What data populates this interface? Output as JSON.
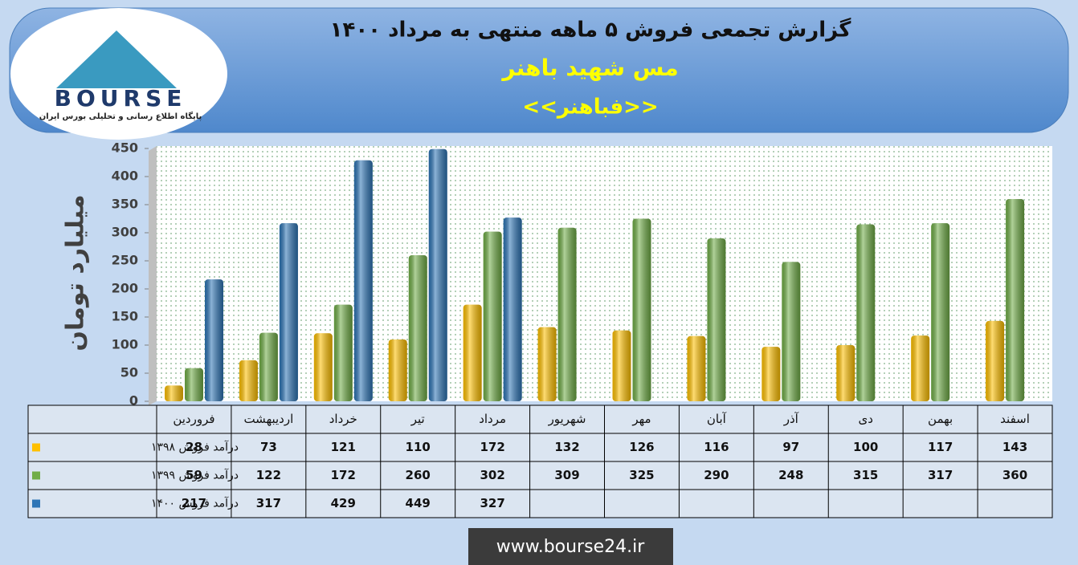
{
  "logo": {
    "text": "BOURSE",
    "subtitle": "پایگاه اطلاع رسانی و تحلیلی بورس ایران"
  },
  "chart_data": {
    "type": "bar",
    "title": "گزارش تجمعی فروش ۵ ماهه منتهی به مرداد ۱۴۰۰",
    "subtitle": "مس شهید باهنر",
    "symbol": "<<فباهنر>>",
    "y_label": "میلیارد تومان",
    "categories": [
      "فروردین",
      "اردیبهشت",
      "خرداد",
      "تیر",
      "مرداد",
      "شهریور",
      "مهر",
      "آبان",
      "آذر",
      "دی",
      "بهمن",
      "اسفند"
    ],
    "series": [
      {
        "name": "درآمد فروش ۱۳۹۸",
        "color": "#ffc000",
        "values": [
          28,
          73,
          121,
          110,
          172,
          132,
          126,
          116,
          97,
          100,
          117,
          143
        ]
      },
      {
        "name": "درآمد فروش ۱۳۹۹",
        "color": "#70ad47",
        "values": [
          59,
          122,
          172,
          260,
          302,
          309,
          325,
          290,
          248,
          315,
          317,
          360
        ]
      },
      {
        "name": "درآمد فروش ۱۴۰۰",
        "color": "#2e75b6",
        "values": [
          217,
          317,
          429,
          449,
          327,
          null,
          null,
          null,
          null,
          null,
          null,
          null
        ]
      }
    ],
    "ylim": [
      0,
      450
    ],
    "yticks": [
      0,
      50,
      100,
      150,
      200,
      250,
      300,
      350,
      400,
      450
    ],
    "grid": false
  },
  "footer": "www.bourse24.ir"
}
